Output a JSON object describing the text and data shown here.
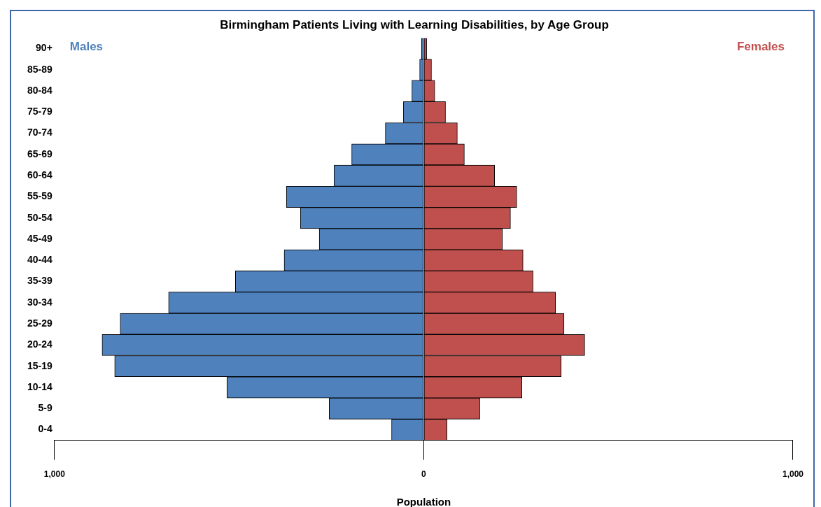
{
  "chart_data": {
    "type": "bar",
    "orientation": "horizontal",
    "stacked": true,
    "title": "Birmingham Patients Living with Learning Disabilities, by Age Group",
    "xlabel": "Population",
    "categories": [
      "90+",
      "85-89",
      "80-84",
      "75-79",
      "70-74",
      "65-69",
      "60-64",
      "55-59",
      "50-54",
      "45-49",
      "40-44",
      "35-39",
      "30-34",
      "25-29",
      "20-24",
      "15-19",
      "10-14",
      "5-9",
      "0-4"
    ],
    "series": [
      {
        "name": "Males",
        "color": "#4f81bd",
        "values": [
          -6,
          -11,
          -32,
          -55,
          -104,
          -195,
          -243,
          -372,
          -334,
          -283,
          -378,
          -510,
          -691,
          -822,
          -871,
          -837,
          -533,
          -256,
          -87
        ]
      },
      {
        "name": "Females",
        "color": "#c0504d",
        "values": [
          8,
          21,
          30,
          59,
          91,
          110,
          192,
          252,
          235,
          213,
          269,
          296,
          357,
          380,
          436,
          372,
          266,
          152,
          63
        ]
      }
    ],
    "xlim": [
      -1000,
      1000
    ],
    "xticks": [
      {
        "value": -1000,
        "label": "1,000"
      },
      0,
      {
        "value": 1000,
        "label": "1,000"
      }
    ],
    "grid": false,
    "legend": false
  }
}
